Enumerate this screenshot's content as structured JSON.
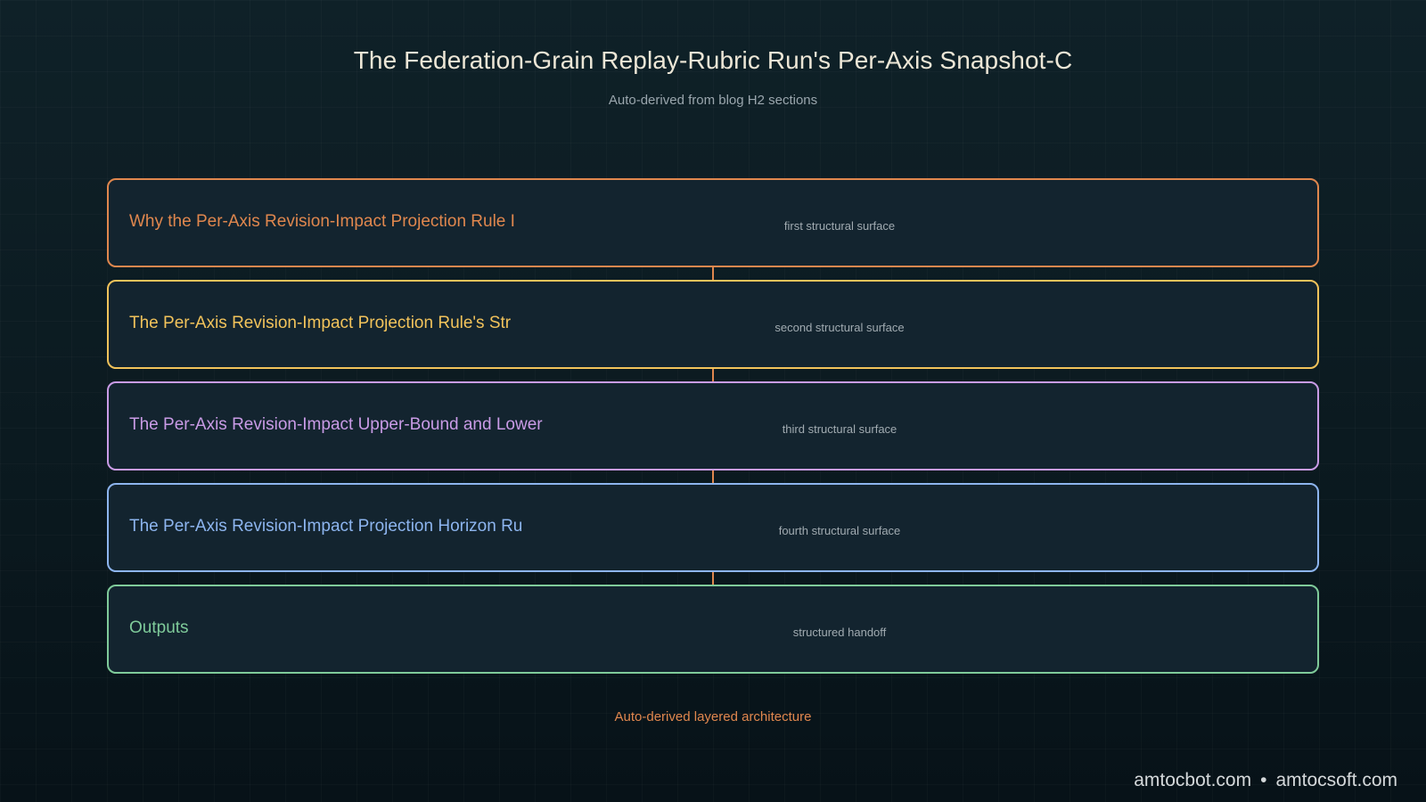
{
  "title": "The Federation-Grain Replay-Rubric Run's Per-Axis Snapshot-C",
  "subtitle": "Auto-derived from blog H2 sections",
  "layers": [
    {
      "title": "Why the Per-Axis Revision-Impact Projection Rule I",
      "caption": "first structural surface",
      "color": "#e0874e"
    },
    {
      "title": "The Per-Axis Revision-Impact Projection Rule's Str",
      "caption": "second structural surface",
      "color": "#f2c35b"
    },
    {
      "title": "The Per-Axis Revision-Impact Upper-Bound and Lower",
      "caption": "third structural surface",
      "color": "#c99be6"
    },
    {
      "title": "The Per-Axis Revision-Impact Projection Horizon Ru",
      "caption": "fourth structural surface",
      "color": "#8db5ef"
    },
    {
      "title": "Outputs",
      "caption": "structured handoff",
      "color": "#7fcb9a"
    }
  ],
  "connector_color": "#e0874e",
  "footer_caption": "Auto-derived layered architecture",
  "credits": {
    "left": "amtocbot.com",
    "separator": "•",
    "right": "amtocsoft.com"
  }
}
